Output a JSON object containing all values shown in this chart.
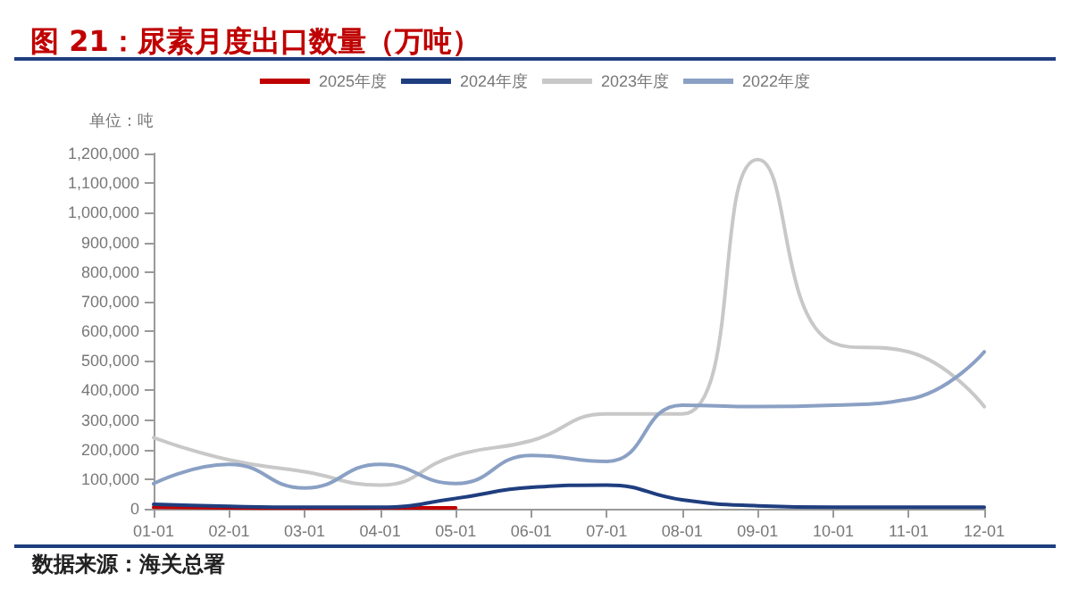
{
  "chart_data": {
    "type": "line",
    "title": "图 21：尿素月度出口数量（万吨）",
    "ylabel": "单位：吨",
    "annotations": [
      "数据来源：海关总署"
    ],
    "categories": [
      "01-01",
      "02-01",
      "03-01",
      "04-01",
      "05-01",
      "06-01",
      "07-01",
      "08-01",
      "09-01",
      "10-01",
      "11-01",
      "12-01"
    ],
    "series": [
      {
        "name": "2025年度",
        "color": "#c00000",
        "values": [
          5000,
          3000,
          2000,
          3000,
          3000,
          null,
          null,
          null,
          null,
          null,
          null,
          null
        ]
      },
      {
        "name": "2024年度",
        "color": "#1f3e7f",
        "values": [
          15000,
          8000,
          5000,
          5000,
          35000,
          72000,
          80000,
          30000,
          10000,
          5000,
          5000,
          5000
        ]
      },
      {
        "name": "2023年度",
        "color": "#c8c8c8",
        "values": [
          240000,
          165000,
          125000,
          80000,
          180000,
          230000,
          320000,
          320000,
          1180000,
          560000,
          530000,
          345000
        ]
      },
      {
        "name": "2022年度",
        "color": "#8aa0c4",
        "values": [
          85000,
          150000,
          70000,
          150000,
          85000,
          180000,
          160000,
          350000,
          345000,
          350000,
          370000,
          530000
        ]
      }
    ],
    "ylim": [
      0,
      1200000
    ],
    "yticks": [
      0,
      {
        "value": 100000,
        "label": "100,000"
      },
      {
        "value": 200000,
        "label": "200,000"
      },
      {
        "value": 300000,
        "label": "300,000"
      },
      {
        "value": 400000,
        "label": "400,000"
      },
      {
        "value": 500000,
        "label": "500,000"
      },
      {
        "value": 600000,
        "label": "600,000"
      },
      {
        "value": 700000,
        "label": "700,000"
      },
      {
        "value": 800000,
        "label": "800,000"
      },
      {
        "value": 900000,
        "label": "900,000"
      },
      {
        "value": 1000000,
        "label": "1,000,000"
      },
      {
        "value": 1100000,
        "label": "1,100,000"
      },
      {
        "value": 1200000,
        "label": "1,200,000"
      }
    ],
    "grid": false,
    "legend": "top",
    "marker": "none",
    "line_style": "solid"
  }
}
